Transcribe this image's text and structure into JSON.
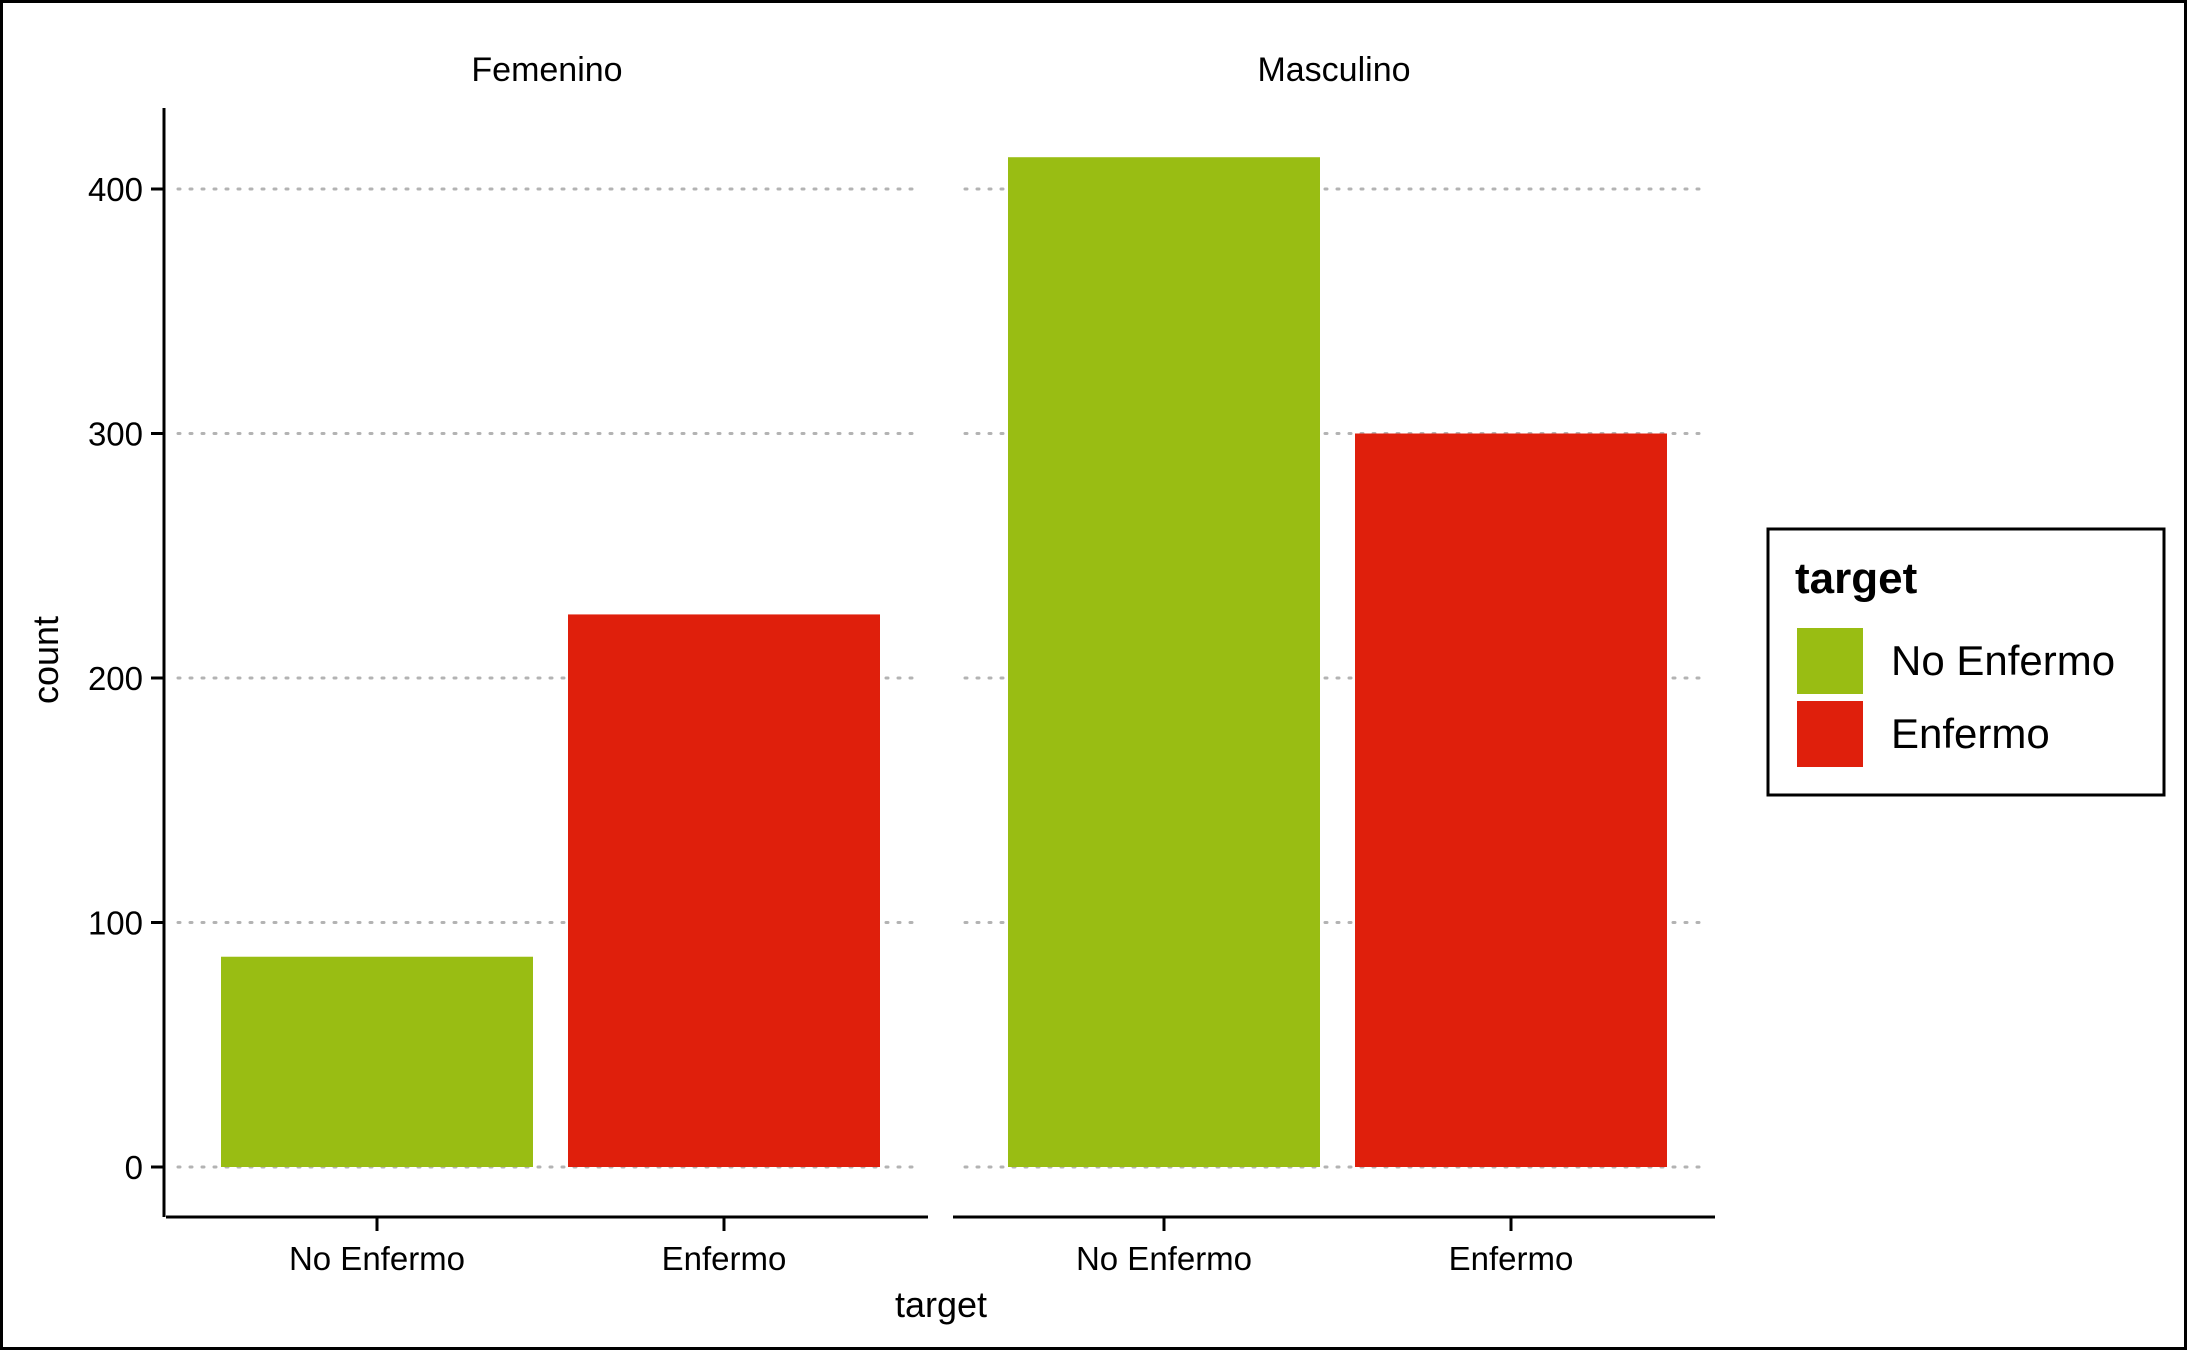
{
  "chart_data": {
    "type": "bar",
    "facets": [
      "Femenino",
      "Masculino"
    ],
    "categories": [
      "No Enfermo",
      "Enfermo"
    ],
    "series": [
      {
        "facet": "Femenino",
        "values": [
          86,
          226
        ]
      },
      {
        "facet": "Masculino",
        "values": [
          413,
          300
        ]
      }
    ],
    "colors": {
      "No Enfermo": "#99BD13",
      "Enfermo": "#DF1F0C"
    },
    "xlabel": "target",
    "ylabel": "count",
    "ylim": [
      0,
      420
    ],
    "yticks": [
      0,
      100,
      200,
      300,
      400
    ],
    "grid": "horizontal dotted",
    "legend": {
      "title": "target",
      "position": "right",
      "entries": [
        "No Enfermo",
        "Enfermo"
      ]
    }
  }
}
